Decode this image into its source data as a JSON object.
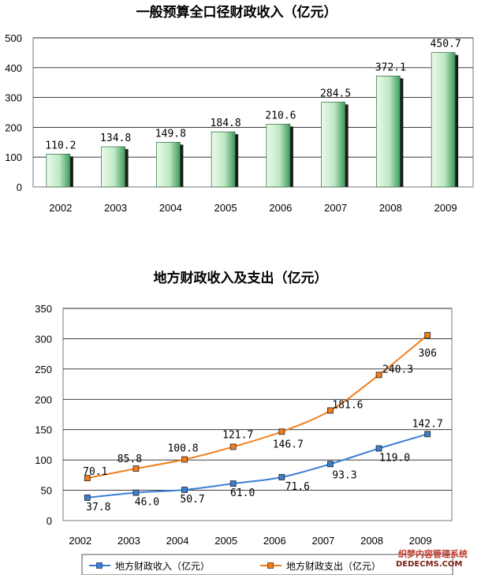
{
  "chart_data": [
    {
      "type": "bar",
      "title": "一般预算全口径财政收入（亿元）",
      "categories": [
        "2002",
        "2003",
        "2004",
        "2005",
        "2006",
        "2007",
        "2008",
        "2009"
      ],
      "values": [
        110.2,
        134.8,
        149.8,
        184.8,
        210.6,
        284.5,
        372.1,
        450.7
      ],
      "data_labels": [
        "110.2",
        "134.8",
        "149.8",
        "184.8",
        "210.6",
        "284.5",
        "372.1",
        "450.7"
      ],
      "y_ticks": [
        "0",
        "100",
        "200",
        "300",
        "400",
        "500"
      ],
      "ylim": [
        0,
        500
      ],
      "grid": true,
      "legend": "none",
      "colors": {
        "bar_light": "#e9fbe9",
        "bar_dark": "#3d9a5c",
        "shadow": "#1a1a1a"
      }
    },
    {
      "type": "line",
      "title": "地方财政收入及支出（亿元）",
      "categories": [
        "2002",
        "2003",
        "2004",
        "2005",
        "2006",
        "2007",
        "2008",
        "2009"
      ],
      "series": [
        {
          "name": "地方财政收入（亿元）",
          "values": [
            37.8,
            46.0,
            50.7,
            61.0,
            71.6,
            93.3,
            119.0,
            142.7
          ],
          "labels": [
            "37.8",
            "46.0",
            "50.7",
            "61.0",
            "71.6",
            "93.3",
            "119.0",
            "142.7"
          ],
          "color": "#3c7fd2"
        },
        {
          "name": "地方财政支出（亿元）",
          "values": [
            70.1,
            85.8,
            100.8,
            121.7,
            146.7,
            181.6,
            240.3,
            306
          ],
          "labels": [
            "70.1",
            "85.8",
            "100.8",
            "121.7",
            "146.7",
            "181.6",
            "240.3",
            "306"
          ],
          "color": "#f07d1a"
        }
      ],
      "y_ticks": [
        "0",
        "50",
        "100",
        "150",
        "200",
        "250",
        "300",
        "350"
      ],
      "ylim": [
        0,
        350
      ],
      "grid": true,
      "legend": "bottom"
    }
  ],
  "watermark": {
    "line1": "织梦内容管理系统",
    "line2": "DEDECMS.COM"
  }
}
